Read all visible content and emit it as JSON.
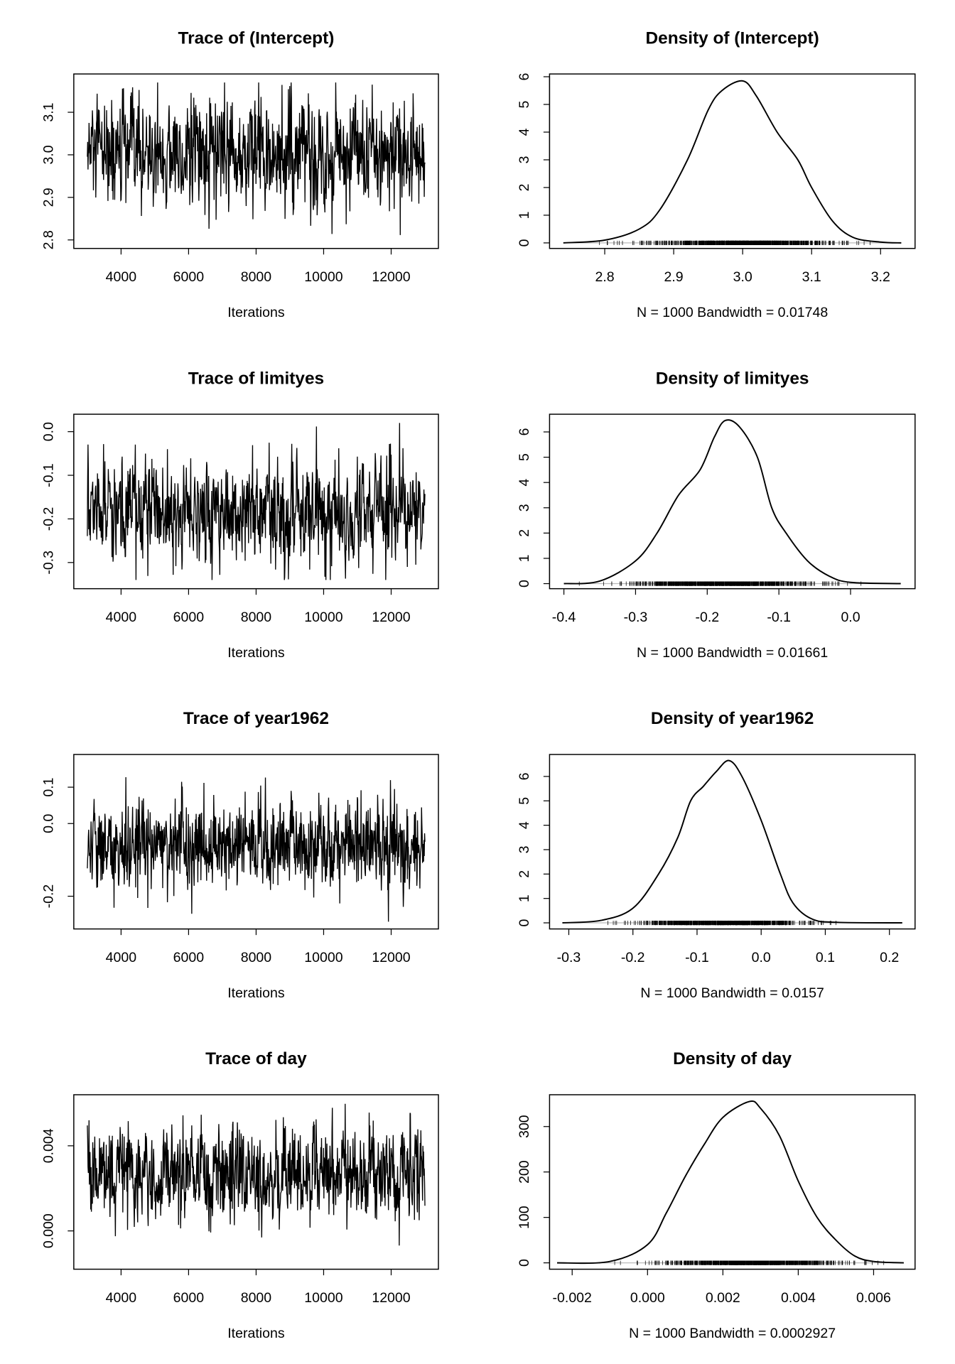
{
  "chart_data": [
    {
      "type": "line",
      "title": "Trace of (Intercept)",
      "xlabel": "Iterations",
      "ylabel": "",
      "iterations": [
        3001,
        13000
      ],
      "n_samples": 1000,
      "mean": 3.0,
      "sd": 0.065,
      "yrange_observed": [
        2.79,
        3.17
      ],
      "xticks": [
        4000,
        6000,
        8000,
        10000,
        12000
      ],
      "yticks": [
        2.8,
        2.9,
        3.0,
        3.1
      ],
      "yticklabels": [
        "2.8",
        "2.9",
        "3.0",
        "3.1"
      ],
      "ylim": [
        2.78,
        3.19
      ]
    },
    {
      "type": "line",
      "title": "Density of (Intercept)",
      "xlabel": "N = 1000   Bandwidth = 0.01748",
      "x": [
        2.74,
        2.8,
        2.85,
        2.88,
        2.92,
        2.95,
        2.97,
        3.0,
        3.02,
        3.05,
        3.08,
        3.1,
        3.13,
        3.16,
        3.2,
        3.23
      ],
      "y": [
        0,
        0.1,
        0.5,
        1.2,
        3,
        4.8,
        5.5,
        5.85,
        5.3,
        4.0,
        3.0,
        2.0,
        0.8,
        0.2,
        0.03,
        0
      ],
      "xticks": [
        2.8,
        2.9,
        3.0,
        3.1,
        3.2
      ],
      "xticklabels": [
        "2.8",
        "2.9",
        "3.0",
        "3.1",
        "3.2"
      ],
      "yticks": [
        0,
        1,
        2,
        3,
        4,
        5,
        6
      ],
      "xlim": [
        2.72,
        3.25
      ],
      "ylim": [
        -0.2,
        6.1
      ],
      "rug": true,
      "mean": 3.0,
      "sd": 0.065
    },
    {
      "type": "line",
      "title": "Trace of limityes",
      "xlabel": "Iterations",
      "ylabel": "",
      "iterations": [
        3001,
        13000
      ],
      "n_samples": 1000,
      "mean": -0.18,
      "sd": 0.06,
      "yrange_observed": [
        -0.34,
        0.02
      ],
      "xticks": [
        4000,
        6000,
        8000,
        10000,
        12000
      ],
      "yticks": [
        -0.3,
        -0.2,
        -0.1,
        0.0
      ],
      "yticklabels": [
        "-0.3",
        "-0.2",
        "-0.1",
        "0.0"
      ],
      "ylim": [
        -0.36,
        0.04
      ]
    },
    {
      "type": "line",
      "title": "Density of limityes",
      "xlabel": "N = 1000   Bandwidth = 0.01661",
      "x": [
        -0.4,
        -0.35,
        -0.3,
        -0.27,
        -0.24,
        -0.21,
        -0.19,
        -0.175,
        -0.155,
        -0.13,
        -0.11,
        -0.09,
        -0.06,
        -0.03,
        0.0,
        0.07
      ],
      "y": [
        0,
        0.1,
        0.9,
        2,
        3.5,
        4.5,
        5.8,
        6.45,
        6.2,
        5,
        3,
        2,
        0.9,
        0.3,
        0.05,
        0
      ],
      "xticks": [
        -0.4,
        -0.3,
        -0.2,
        -0.1,
        0.0
      ],
      "xticklabels": [
        "-0.4",
        "-0.3",
        "-0.2",
        "-0.1",
        "0.0"
      ],
      "yticks": [
        0,
        1,
        2,
        3,
        4,
        5,
        6
      ],
      "xlim": [
        -0.42,
        0.09
      ],
      "ylim": [
        -0.2,
        6.7
      ],
      "rug": true,
      "mean": -0.18,
      "sd": 0.06
    },
    {
      "type": "line",
      "title": "Trace of year1962",
      "xlabel": "Iterations",
      "ylabel": "",
      "iterations": [
        3001,
        13000
      ],
      "n_samples": 1000,
      "mean": -0.06,
      "sd": 0.06,
      "yrange_observed": [
        -0.27,
        0.15
      ],
      "xticks": [
        4000,
        6000,
        8000,
        10000,
        12000
      ],
      "yticks": [
        -0.2,
        0.0,
        0.1
      ],
      "yticklabels": [
        "-0.2",
        "0.0",
        "0.1"
      ],
      "ylim": [
        -0.29,
        0.19
      ]
    },
    {
      "type": "line",
      "title": "Density of year1962",
      "xlabel": "N = 1000   Bandwidth = 0.0157",
      "x": [
        -0.31,
        -0.25,
        -0.2,
        -0.16,
        -0.13,
        -0.11,
        -0.09,
        -0.07,
        -0.05,
        -0.03,
        0,
        0.03,
        0.05,
        0.08,
        0.12,
        0.22
      ],
      "y": [
        0,
        0.1,
        0.6,
        2,
        3.5,
        5,
        5.6,
        6.2,
        6.65,
        6,
        4.2,
        2,
        0.8,
        0.15,
        0.02,
        0
      ],
      "xticks": [
        -0.3,
        -0.2,
        -0.1,
        0.0,
        0.1,
        0.2
      ],
      "xticklabels": [
        "-0.3",
        "-0.2",
        "-0.1",
        "0.0",
        "0.1",
        "0.2"
      ],
      "yticks": [
        0,
        1,
        2,
        3,
        4,
        5,
        6
      ],
      "xlim": [
        -0.33,
        0.24
      ],
      "ylim": [
        -0.25,
        6.9
      ],
      "rug": true,
      "mean": -0.06,
      "sd": 0.06
    },
    {
      "type": "line",
      "title": "Trace of day",
      "xlabel": "Iterations",
      "ylabel": "",
      "iterations": [
        3001,
        13000
      ],
      "n_samples": 1000,
      "mean": 0.0027,
      "sd": 0.0011,
      "yrange_observed": [
        -0.0016,
        0.0062
      ],
      "xticks": [
        4000,
        6000,
        8000,
        10000,
        12000
      ],
      "yticks": [
        0.0,
        0.004
      ],
      "yticklabels": [
        "0.000",
        "0.004"
      ],
      "ylim": [
        -0.0018,
        0.0064
      ]
    },
    {
      "type": "line",
      "title": "Density of day",
      "xlabel": "N = 1000   Bandwidth = 0.0002927",
      "x": [
        -0.0024,
        -0.001,
        0,
        0.0005,
        0.001,
        0.0015,
        0.002,
        0.0027,
        0.003,
        0.0035,
        0.004,
        0.0045,
        0.005,
        0.0055,
        0.006,
        0.0068
      ],
      "y": [
        0,
        3,
        40,
        110,
        190,
        260,
        320,
        355,
        340,
        280,
        180,
        100,
        50,
        15,
        3,
        0
      ],
      "xticks": [
        -0.002,
        0.0,
        0.002,
        0.004,
        0.006
      ],
      "xticklabels": [
        "-0.002",
        "0.000",
        "0.002",
        "0.004",
        "0.006"
      ],
      "yticks": [
        0,
        100,
        200,
        300
      ],
      "xlim": [
        -0.0026,
        0.0071
      ],
      "ylim": [
        -14,
        370
      ],
      "rug": true,
      "mean": 0.0027,
      "sd": 0.0011
    }
  ]
}
